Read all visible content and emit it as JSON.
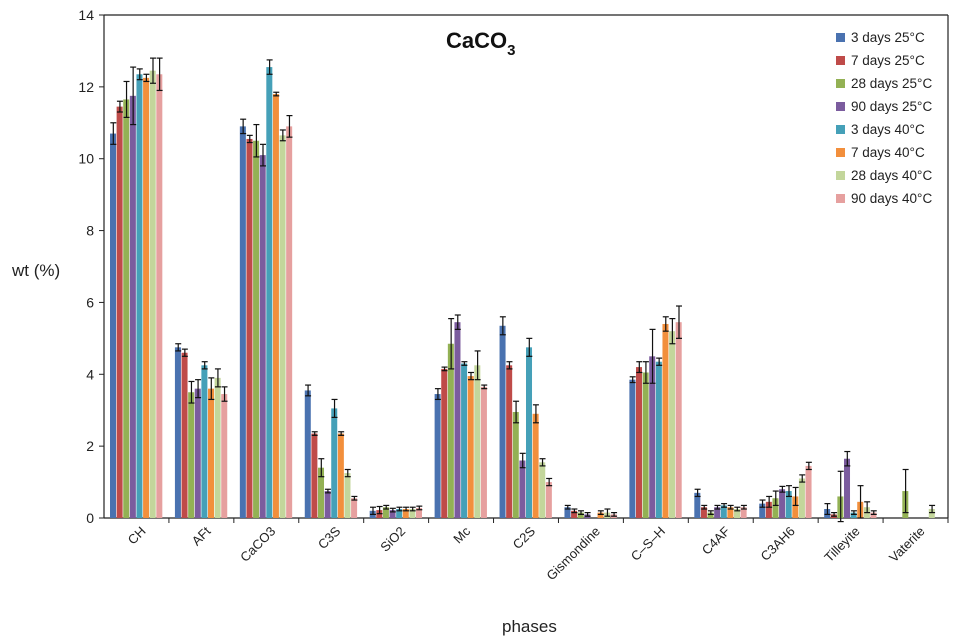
{
  "chart_data": {
    "type": "bar",
    "title_main": "CaCO",
    "title_sub": "3",
    "xlabel": "phases",
    "ylabel": "wt (%)",
    "ylim": [
      0,
      14
    ],
    "yticks": [
      "0",
      "2",
      "4",
      "6",
      "8",
      "10",
      "12",
      "14"
    ],
    "grid": false,
    "legend_position": "top-right",
    "categories": [
      "CH",
      "AFt",
      "CaCO3",
      "C3S",
      "SiO2",
      "Mc",
      "C2S",
      "Gismondine",
      "C–S–H",
      "C4AF",
      "C3AH6",
      "Tilleyite",
      "Vaterite"
    ],
    "series": [
      {
        "name": "3 days 25°C",
        "color": "#4a72b0",
        "values": [
          10.7,
          4.75,
          10.9,
          3.55,
          0.2,
          3.45,
          5.35,
          0.3,
          3.85,
          0.7,
          0.4,
          0.25,
          null
        ],
        "errors": [
          0.3,
          0.1,
          0.2,
          0.15,
          0.1,
          0.15,
          0.25,
          0.05,
          0.08,
          0.1,
          0.1,
          0.15,
          0
        ]
      },
      {
        "name": "7 days 25°C",
        "color": "#bf4b49",
        "values": [
          11.45,
          4.6,
          10.55,
          2.35,
          0.22,
          4.15,
          4.25,
          0.2,
          4.2,
          0.3,
          0.45,
          0.1,
          null
        ],
        "errors": [
          0.15,
          0.1,
          0.1,
          0.05,
          0.1,
          0.05,
          0.1,
          0.05,
          0.15,
          0.05,
          0.15,
          0.05,
          0
        ]
      },
      {
        "name": "28 days 25°C",
        "color": "#93b154",
        "values": [
          11.65,
          3.5,
          10.5,
          1.4,
          0.3,
          4.85,
          2.95,
          0.15,
          4.05,
          0.15,
          0.55,
          0.6,
          0.75
        ],
        "errors": [
          0.5,
          0.3,
          0.45,
          0.25,
          0.05,
          0.7,
          0.3,
          0.05,
          0.3,
          0.05,
          0.2,
          0.7,
          0.6
        ]
      },
      {
        "name": "90 days 25°C",
        "color": "#7b5c9e",
        "values": [
          11.75,
          3.6,
          10.1,
          0.75,
          0.22,
          5.45,
          1.6,
          0.1,
          4.5,
          0.3,
          0.8,
          1.65,
          null
        ],
        "errors": [
          0.8,
          0.25,
          0.3,
          0.05,
          0.05,
          0.2,
          0.2,
          0.05,
          0.75,
          0.05,
          0.08,
          0.2,
          0
        ]
      },
      {
        "name": "3 days 40°C",
        "color": "#45a0b8",
        "values": [
          12.35,
          4.25,
          12.55,
          3.05,
          0.25,
          4.3,
          4.75,
          null,
          4.35,
          0.35,
          0.75,
          0.15,
          null
        ],
        "errors": [
          0.15,
          0.1,
          0.2,
          0.25,
          0.05,
          0.05,
          0.25,
          0,
          0.1,
          0.05,
          0.15,
          0.05,
          0
        ]
      },
      {
        "name": "7 days 40°C",
        "color": "#f28f3c",
        "values": [
          12.25,
          3.6,
          11.8,
          2.35,
          0.25,
          3.95,
          2.9,
          0.15,
          5.4,
          0.3,
          0.6,
          0.45,
          null
        ],
        "errors": [
          0.1,
          0.3,
          0.05,
          0.05,
          0.05,
          0.1,
          0.25,
          0.05,
          0.2,
          0.05,
          0.25,
          0.45,
          0
        ]
      },
      {
        "name": "28 days 40°C",
        "color": "#c3d69b",
        "values": [
          12.45,
          3.9,
          10.65,
          1.25,
          0.25,
          4.25,
          1.55,
          0.15,
          5.2,
          0.25,
          1.1,
          0.3,
          0.25
        ],
        "errors": [
          0.35,
          0.25,
          0.15,
          0.1,
          0.05,
          0.4,
          0.1,
          0.1,
          0.35,
          0.05,
          0.1,
          0.15,
          0.1
        ]
      },
      {
        "name": "90 days 40°C",
        "color": "#e6a09f",
        "values": [
          12.35,
          3.45,
          10.9,
          0.55,
          0.28,
          3.65,
          1.0,
          0.1,
          5.45,
          0.3,
          1.45,
          0.15,
          null
        ],
        "errors": [
          0.45,
          0.2,
          0.3,
          0.05,
          0.05,
          0.05,
          0.1,
          0.05,
          0.45,
          0.05,
          0.1,
          0.05,
          0
        ]
      }
    ]
  }
}
